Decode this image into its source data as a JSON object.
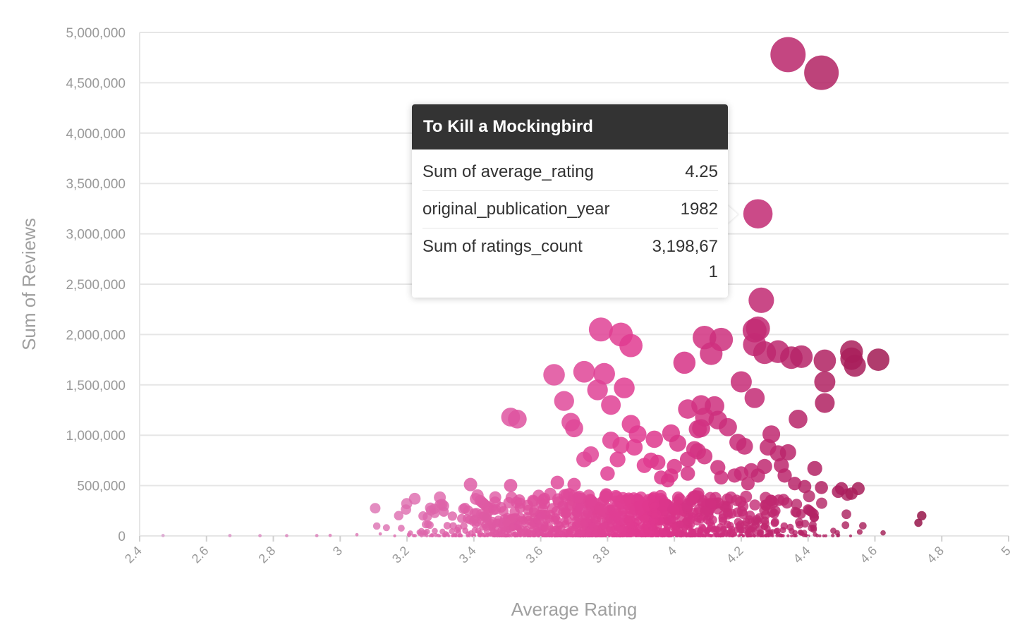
{
  "chart_data": {
    "type": "scatter",
    "xlabel": "Average Rating",
    "ylabel": "Sum of Reviews",
    "xlim": [
      2.4,
      5
    ],
    "ylim": [
      0,
      5000000
    ],
    "x_ticks": [
      "2.4",
      "2.6",
      "2.8",
      "3",
      "3.2",
      "3.4",
      "3.6",
      "3.8",
      "4",
      "4.2",
      "4.4",
      "4.6",
      "4.8",
      "5"
    ],
    "y_ticks": [
      "0",
      "500,000",
      "1,000,000",
      "1,500,000",
      "2,000,000",
      "2,500,000",
      "3,000,000",
      "3,500,000",
      "4,000,000",
      "4,500,000",
      "5,000,000"
    ],
    "size_encoding": "ratings_count",
    "color_encoding": "average_rating",
    "colors": {
      "low": "#d9a3d0",
      "mid": "#e0388f",
      "high": "#8c1040"
    },
    "grid": true,
    "points": [
      [
        4.34,
        4780000
      ],
      [
        4.44,
        4600000
      ],
      [
        4.25,
        3198671
      ],
      [
        4.26,
        2340000
      ],
      [
        3.78,
        2050000
      ],
      [
        3.84,
        2000000
      ],
      [
        3.87,
        1890000
      ],
      [
        4.09,
        1970000
      ],
      [
        4.14,
        1950000
      ],
      [
        4.24,
        2040000
      ],
      [
        4.25,
        2060000
      ],
      [
        4.24,
        1900000
      ],
      [
        4.27,
        1820000
      ],
      [
        4.31,
        1830000
      ],
      [
        4.35,
        1770000
      ],
      [
        4.38,
        1780000
      ],
      [
        4.45,
        1740000
      ],
      [
        4.53,
        1830000
      ],
      [
        4.53,
        1760000
      ],
      [
        4.54,
        1690000
      ],
      [
        4.61,
        1750000
      ],
      [
        4.03,
        1720000
      ],
      [
        4.11,
        1810000
      ],
      [
        3.64,
        1600000
      ],
      [
        3.73,
        1630000
      ],
      [
        3.79,
        1610000
      ],
      [
        3.77,
        1450000
      ],
      [
        3.85,
        1470000
      ],
      [
        3.81,
        1300000
      ],
      [
        4.2,
        1530000
      ],
      [
        4.24,
        1370000
      ],
      [
        4.45,
        1530000
      ],
      [
        4.45,
        1320000
      ],
      [
        4.37,
        1160000
      ],
      [
        3.51,
        1180000
      ],
      [
        3.53,
        1160000
      ],
      [
        3.67,
        1340000
      ],
      [
        3.69,
        1130000
      ],
      [
        3.7,
        1070000
      ],
      [
        4.04,
        1260000
      ],
      [
        4.08,
        1300000
      ],
      [
        4.12,
        1290000
      ],
      [
        4.09,
        1180000
      ],
      [
        4.13,
        1150000
      ],
      [
        4.16,
        1080000
      ],
      [
        4.07,
        1060000
      ],
      [
        4.08,
        1070000
      ],
      [
        4.29,
        1010000
      ],
      [
        3.87,
        1110000
      ],
      [
        3.89,
        1010000
      ],
      [
        3.99,
        1020000
      ],
      [
        3.94,
        960000
      ],
      [
        3.81,
        950000
      ],
      [
        3.84,
        900000
      ],
      [
        3.88,
        880000
      ],
      [
        4.01,
        920000
      ],
      [
        4.06,
        860000
      ],
      [
        4.07,
        840000
      ],
      [
        4.19,
        930000
      ],
      [
        4.21,
        890000
      ],
      [
        4.31,
        820000
      ],
      [
        4.28,
        880000
      ],
      [
        4.34,
        830000
      ],
      [
        3.75,
        810000
      ],
      [
        3.73,
        760000
      ],
      [
        3.83,
        760000
      ],
      [
        3.93,
        750000
      ],
      [
        3.95,
        730000
      ],
      [
        4.04,
        760000
      ],
      [
        4.09,
        790000
      ],
      [
        4.13,
        680000
      ],
      [
        4.23,
        650000
      ],
      [
        4.32,
        700000
      ],
      [
        4.42,
        670000
      ],
      [
        4.27,
        690000
      ],
      [
        3.51,
        500000
      ],
      [
        3.39,
        510000
      ],
      [
        4.2,
        620000
      ],
      [
        4.25,
        600000
      ],
      [
        4.33,
        600000
      ],
      [
        4.5,
        470000
      ],
      [
        4.55,
        470000
      ],
      [
        4.49,
        440000
      ],
      [
        4.53,
        420000
      ],
      [
        4.74,
        200000
      ],
      [
        4.73,
        130000
      ],
      [
        3.31,
        240000
      ],
      [
        3.4,
        160000
      ],
      [
        3.44,
        190000
      ],
      [
        3.65,
        530000
      ],
      [
        3.7,
        510000
      ],
      [
        3.8,
        620000
      ],
      [
        3.91,
        700000
      ],
      [
        4.36,
        520000
      ],
      [
        4.39,
        490000
      ],
      [
        4.44,
        480000
      ],
      [
        3.99,
        600000
      ],
      [
        4.0,
        690000
      ],
      [
        4.04,
        620000
      ],
      [
        4.14,
        580000
      ],
      [
        4.18,
        600000
      ],
      [
        4.22,
        520000
      ],
      [
        3.96,
        580000
      ],
      [
        3.98,
        550000
      ]
    ],
    "tooltip": {
      "title": "To Kill a Mockingbird",
      "rows": [
        {
          "label": "Sum of average_rating",
          "value": "4.25"
        },
        {
          "label": "original_publication_year",
          "value": "1982"
        },
        {
          "label": "Sum of ratings_count",
          "value": "3,198,671"
        }
      ]
    }
  }
}
